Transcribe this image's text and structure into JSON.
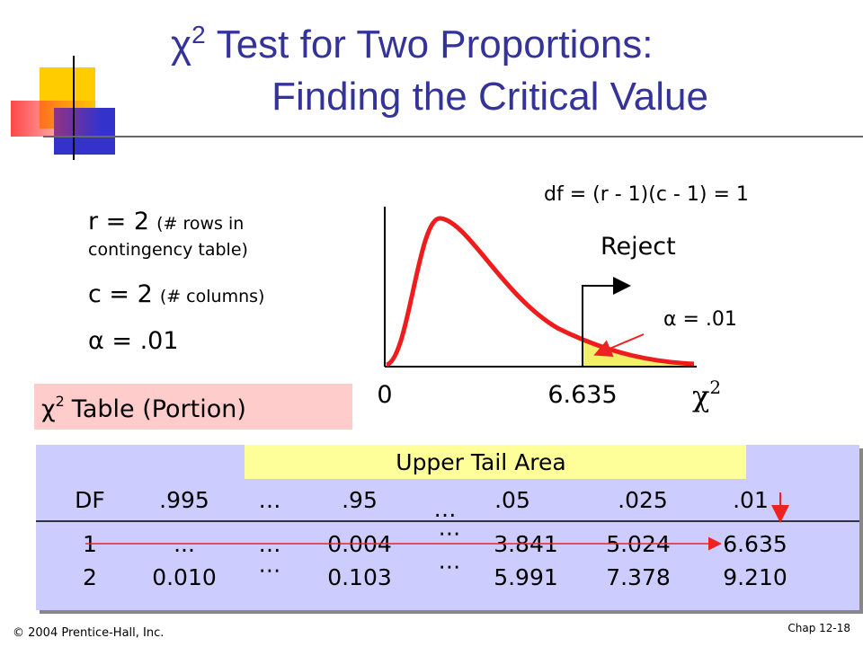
{
  "title": {
    "symbol": "χ",
    "sup": "2",
    "line1": "Test for Two Proportions:",
    "line2": "Finding the Critical Value"
  },
  "given": {
    "r": "r = 2",
    "r_note1": "(# rows in",
    "r_note2": "contingency table)",
    "c": "c = 2",
    "c_note": "(# columns)",
    "alpha": "α = .01"
  },
  "chart": {
    "df": "df = (r - 1)(c - 1) = 1",
    "reject": "Reject",
    "alpha": "α = .01",
    "zero": "0",
    "critical": "6.635",
    "axis_symbol": "χ",
    "axis_sup": "2"
  },
  "table_label": {
    "symbol": "χ",
    "sup": "2",
    "text": "Table (Portion)"
  },
  "table": {
    "caption": "Upper Tail Area",
    "header": [
      "DF",
      ".995",
      "…",
      ".95",
      "…",
      ".05",
      ".025",
      ".01"
    ],
    "rows": [
      [
        "1",
        "...",
        "…",
        "0.004",
        "⋯",
        "3.841",
        "5.024",
        "6.635"
      ],
      [
        "2",
        "0.010",
        "⋯",
        "0.103",
        "⋯",
        "5.991",
        "7.378",
        "9.210"
      ]
    ]
  },
  "footer": {
    "left": "© 2004 Prentice-Hall, Inc.",
    "right": "Chap 12-18"
  }
}
